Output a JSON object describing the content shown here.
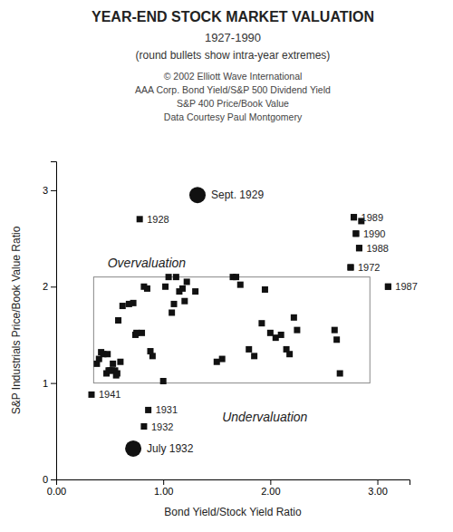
{
  "chart_data": {
    "type": "scatter",
    "title": "YEAR-END STOCK MARKET VALUATION",
    "subtitle": [
      "1927-1990",
      "(round bullets show intra-year extremes)"
    ],
    "credits": [
      "© 2002 Elliott Wave International",
      "AAA Corp. Bond Yield/S&P 500 Dividend Yield",
      "S&P 400 Price/Book Value",
      "Data Courtesy Paul Montgomery"
    ],
    "xlabel": "Bond Yield/Stock Yield Ratio",
    "ylabel": "S&P Industrials Price/Book Value Ratio",
    "xlim": [
      0.0,
      3.3
    ],
    "ylim": [
      0.0,
      3.3
    ],
    "xticks": [
      {
        "value": 0.0,
        "label": "0.00"
      },
      {
        "value": 1.0,
        "label": "1.00"
      },
      {
        "value": 2.0,
        "label": "2.00"
      },
      {
        "value": 3.0,
        "label": "3.00"
      }
    ],
    "yticks": [
      0,
      1,
      2,
      3
    ],
    "color": "#111111",
    "series": [
      {
        "marker": "square",
        "x": [
          0.38,
          0.4,
          0.42,
          0.44,
          0.47,
          0.48,
          0.49,
          0.5,
          0.52,
          0.53,
          0.55,
          0.56,
          0.57,
          0.58,
          0.6,
          0.62,
          0.68,
          0.72,
          0.74,
          0.75,
          0.8,
          0.82,
          0.85,
          0.88,
          0.9,
          1.0,
          1.02,
          1.05,
          1.08,
          1.1,
          1.12,
          1.15,
          1.18,
          1.2,
          1.22,
          1.3,
          1.5,
          1.55,
          1.65,
          1.68,
          1.72,
          1.8,
          1.85,
          1.92,
          1.95,
          2.0,
          2.05,
          2.1,
          2.15,
          2.18,
          2.22,
          2.25,
          2.6,
          2.62,
          2.65,
          2.75,
          2.78,
          2.8,
          2.83,
          2.85,
          3.1
        ],
        "values": [
          1.2,
          1.25,
          1.32,
          1.3,
          1.1,
          1.3,
          1.13,
          1.13,
          1.13,
          1.2,
          1.13,
          1.08,
          1.1,
          1.65,
          1.22,
          1.8,
          1.82,
          1.83,
          1.5,
          1.52,
          1.52,
          2.0,
          1.98,
          1.33,
          1.28,
          1.02,
          2.0,
          2.1,
          1.73,
          1.82,
          2.1,
          1.95,
          1.98,
          1.85,
          2.05,
          1.95,
          1.22,
          1.25,
          2.1,
          2.1,
          2.02,
          1.35,
          1.28,
          1.62,
          1.97,
          1.52,
          1.47,
          1.5,
          1.35,
          1.3,
          1.68,
          1.55,
          1.55,
          1.45,
          1.1,
          2.2,
          2.72,
          2.55,
          2.4,
          2.68,
          2.0
        ]
      },
      {
        "marker": "square",
        "x": [
          0.78,
          2.78,
          2.8,
          2.83,
          2.75,
          3.1,
          0.33,
          0.86,
          0.82
        ],
        "values": [
          2.7,
          2.72,
          2.55,
          2.4,
          2.2,
          2.0,
          0.88,
          0.72,
          0.55
        ],
        "labels": [
          "1928",
          "1989",
          "1990",
          "1988",
          "1972",
          "1987",
          "1941",
          "1931",
          "1932"
        ]
      },
      {
        "marker": "circle",
        "x": [
          1.32,
          0.72
        ],
        "values": [
          2.95,
          0.32
        ],
        "labels": [
          "Sept. 1929",
          "July 1932"
        ]
      }
    ],
    "box": {
      "x0": 0.35,
      "y0": 1.0,
      "width": 2.58,
      "height": 1.1
    },
    "annotations": [
      {
        "x": 0.48,
        "y": 2.25,
        "text": "Overvaluation"
      },
      {
        "x": 1.55,
        "y": 0.65,
        "text": "Undervaluation"
      }
    ]
  }
}
